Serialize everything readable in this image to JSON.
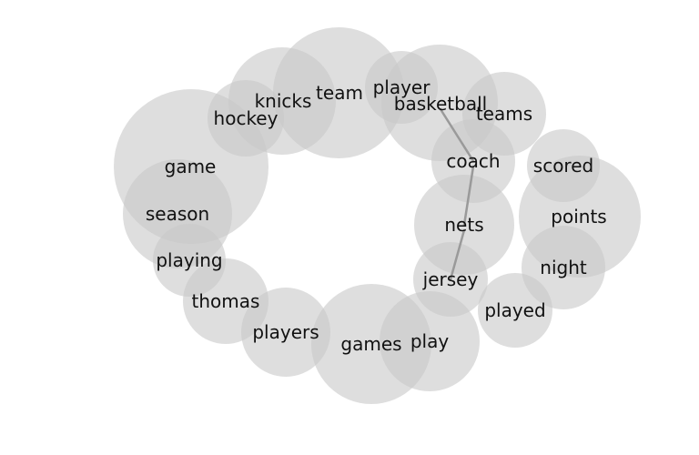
{
  "words": [
    {
      "id": "game",
      "label": "game"
    },
    {
      "id": "season",
      "label": "season"
    },
    {
      "id": "playing",
      "label": "playing"
    },
    {
      "id": "thomas",
      "label": "thomas"
    },
    {
      "id": "players",
      "label": "players"
    },
    {
      "id": "games",
      "label": "games"
    },
    {
      "id": "play",
      "label": "play"
    },
    {
      "id": "played",
      "label": "played"
    },
    {
      "id": "jersey",
      "label": "jersey"
    },
    {
      "id": "nets",
      "label": "nets"
    },
    {
      "id": "coach",
      "label": "coach"
    },
    {
      "id": "basketball",
      "label": "basketball"
    },
    {
      "id": "teams",
      "label": "teams"
    },
    {
      "id": "scored",
      "label": "scored"
    },
    {
      "id": "points",
      "label": "points"
    },
    {
      "id": "night",
      "label": "night"
    },
    {
      "id": "player",
      "label": "player"
    },
    {
      "id": "team",
      "label": "team"
    },
    {
      "id": "knicks",
      "label": "knicks"
    },
    {
      "id": "hockey",
      "label": "hockey"
    }
  ],
  "links": [
    {
      "from": "basketball",
      "to": "coach"
    },
    {
      "from": "coach",
      "to": "nets"
    },
    {
      "from": "nets",
      "to": "jersey"
    }
  ]
}
